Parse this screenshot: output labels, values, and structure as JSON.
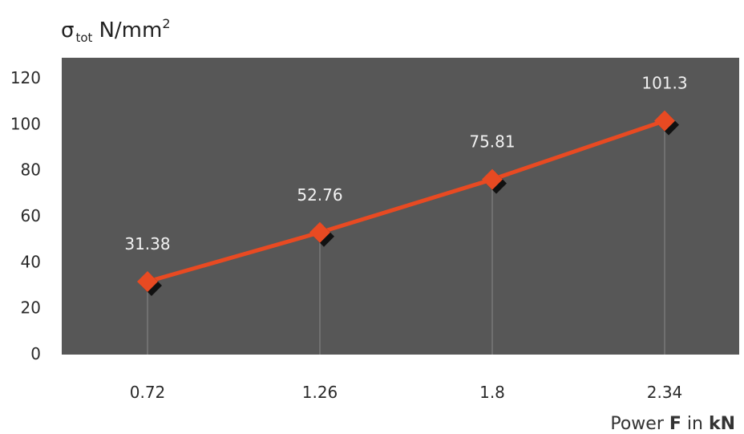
{
  "chart_data": {
    "type": "line",
    "ylabel": {
      "symbol": "σ",
      "subscript": "tot",
      "unit": "N/mm",
      "unit_exponent": "2"
    },
    "xlabel": {
      "prefix": "Power ",
      "symbol": "F",
      "middle": " in ",
      "unit": "kN"
    },
    "categories": [
      "0.72",
      "1.26",
      "1.8",
      "2.34"
    ],
    "series": [
      {
        "values": [
          31.38,
          52.76,
          75.81,
          101.3
        ],
        "labels": [
          "31.38",
          "52.76",
          "75.81",
          "101.3"
        ]
      }
    ],
    "yticks": [
      "0",
      "20",
      "40",
      "60",
      "80",
      "100",
      "120"
    ],
    "ylim": [
      0,
      120
    ],
    "grid": false,
    "colors": {
      "plot_background": "#575757",
      "line": "#e84a22",
      "marker": "#e84a22",
      "marker_shadow": "#111111",
      "drop_lines": "#8a8a8a"
    }
  }
}
